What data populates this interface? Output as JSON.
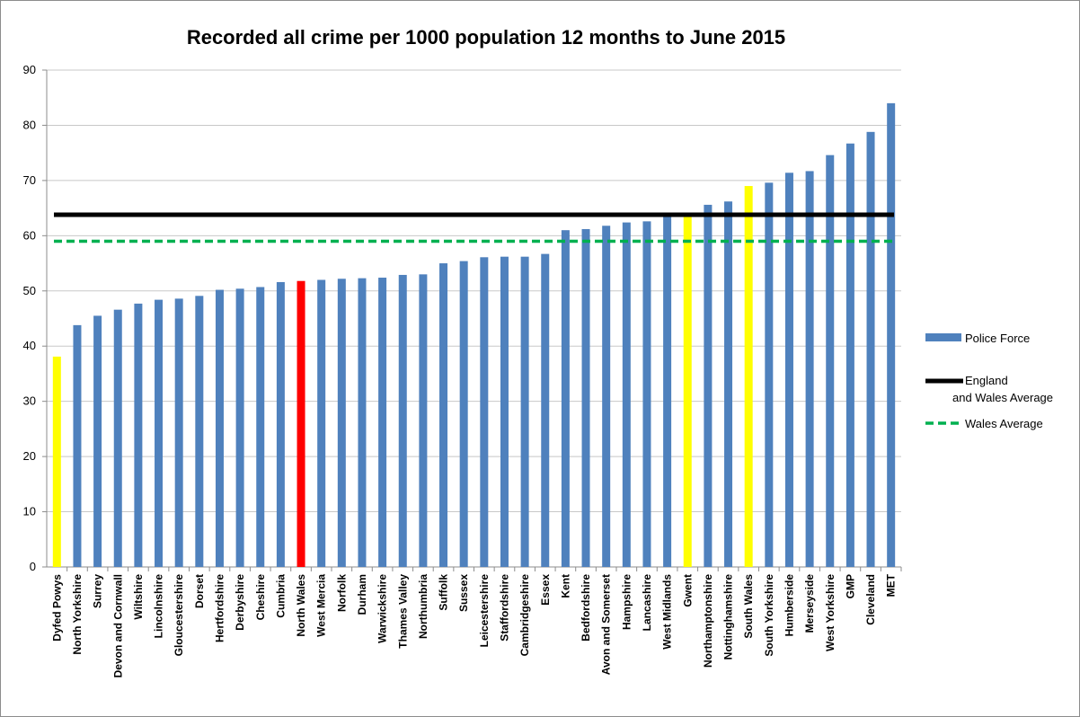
{
  "chart_data": {
    "type": "bar",
    "title": "Recorded all crime per 1000 population 12 months to June 2015",
    "xlabel": "",
    "ylabel": "",
    "ylim": [
      0,
      90
    ],
    "yticks": [
      0,
      10,
      20,
      30,
      40,
      50,
      60,
      70,
      80,
      90
    ],
    "grid": true,
    "legend_position": "right",
    "categories": [
      "Dyfed Powys",
      "North Yorkshire",
      "Surrey",
      "Devon and Cornwall",
      "Wiltshire",
      "Lincolnshire",
      "Gloucestershire",
      "Dorset",
      "Hertfordshire",
      "Derbyshire",
      "Cheshire",
      "Cumbria",
      "North Wales",
      "West Mercia",
      "Norfolk",
      "Durham",
      "Warwickshire",
      "Thames Valley",
      "Northumbria",
      "Suffolk",
      "Sussex",
      "Leicestershire",
      "Staffordshire",
      "Cambridgeshire",
      "Essex",
      "Kent",
      "Bedfordshire",
      "Avon and Somerset",
      "Hampshire",
      "Lancashire",
      "West Midlands",
      "Gwent",
      "Northamptonshire",
      "Nottinghamshire",
      "South Wales",
      "South Yorkshire",
      "Humberside",
      "Merseyside",
      "West Yorkshire",
      "GMP",
      "Cleveland",
      "MET"
    ],
    "series": [
      {
        "name": "Police Force",
        "values": [
          38.1,
          43.8,
          45.5,
          46.6,
          47.7,
          48.4,
          48.6,
          49.1,
          50.2,
          50.4,
          50.7,
          51.6,
          51.8,
          52.0,
          52.2,
          52.3,
          52.4,
          52.9,
          53.0,
          55.0,
          55.4,
          56.1,
          56.2,
          56.2,
          56.7,
          61.0,
          61.2,
          61.8,
          62.4,
          62.6,
          63.5,
          63.5,
          65.6,
          66.2,
          69.0,
          69.6,
          71.4,
          71.7,
          74.6,
          76.7,
          78.8,
          84.0
        ],
        "color": "#4f81bd",
        "highlight_colors": {
          "Dyfed Powys": "#ffff00",
          "Gwent": "#ffff00",
          "South Wales": "#ffff00",
          "North Wales": "#ff0000"
        }
      },
      {
        "name": "England\nand Wales Average",
        "type": "line",
        "value": 63.8,
        "color": "#000000",
        "style": "solid"
      },
      {
        "name": "Wales Average",
        "type": "line",
        "value": 59.0,
        "color": "#00b050",
        "style": "dashed"
      }
    ]
  }
}
